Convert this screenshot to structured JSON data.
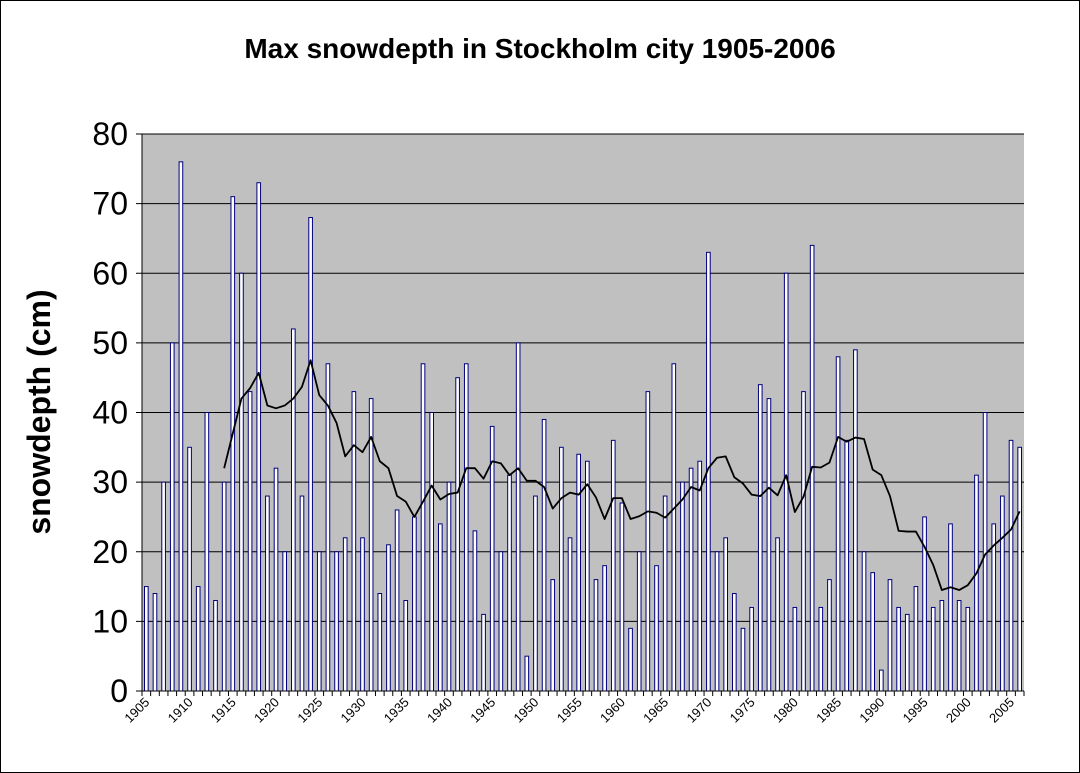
{
  "chart_data": {
    "type": "bar",
    "title": "Max snowdepth in Stockholm city 1905-2006",
    "ylabel": "snowdepth (cm)",
    "xlabel": "",
    "ylim": [
      0,
      80
    ],
    "yticks": [
      "0",
      "10",
      "20",
      "30",
      "40",
      "50",
      "60",
      "70",
      "80"
    ],
    "x_tick_labels": [
      "1905",
      "1910",
      "1915",
      "1920",
      "1925",
      "1930",
      "1935",
      "1940",
      "1945",
      "1950",
      "1955",
      "1960",
      "1965",
      "1970",
      "1975",
      "1980",
      "1985",
      "1990",
      "1995",
      "2000",
      "2005"
    ],
    "grid": true,
    "legend": "none",
    "plot_background": "#c0c0c0",
    "bar_fill": "#ffffff",
    "bar_stroke": "#000080",
    "line_color": "#000000",
    "categories": [
      1905,
      1906,
      1907,
      1908,
      1909,
      1910,
      1911,
      1912,
      1913,
      1914,
      1915,
      1916,
      1917,
      1918,
      1919,
      1920,
      1921,
      1922,
      1923,
      1924,
      1925,
      1926,
      1927,
      1928,
      1929,
      1930,
      1931,
      1932,
      1933,
      1934,
      1935,
      1936,
      1937,
      1938,
      1939,
      1940,
      1941,
      1942,
      1943,
      1944,
      1945,
      1946,
      1947,
      1948,
      1949,
      1950,
      1951,
      1952,
      1953,
      1954,
      1955,
      1956,
      1957,
      1958,
      1959,
      1960,
      1961,
      1962,
      1963,
      1964,
      1965,
      1966,
      1967,
      1968,
      1969,
      1970,
      1971,
      1972,
      1973,
      1974,
      1975,
      1976,
      1977,
      1978,
      1979,
      1980,
      1981,
      1982,
      1983,
      1984,
      1985,
      1986,
      1987,
      1988,
      1989,
      1990,
      1991,
      1992,
      1993,
      1994,
      1995,
      1996,
      1997,
      1998,
      1999,
      2000,
      2001,
      2002,
      2003,
      2004,
      2005,
      2006
    ],
    "series": [
      {
        "kind": "bar",
        "values": [
          15,
          14,
          30,
          50,
          76,
          35,
          15,
          40,
          13,
          30,
          71,
          60,
          43,
          73,
          28,
          32,
          20,
          52,
          28,
          68,
          20,
          47,
          20,
          22,
          43,
          22,
          42,
          14,
          21,
          26,
          13,
          25,
          47,
          40,
          24,
          30,
          45,
          47,
          23,
          11,
          38,
          20,
          31,
          50,
          5,
          28,
          39,
          16,
          35,
          22,
          34,
          33,
          16,
          18,
          36,
          27,
          9,
          20,
          43,
          18,
          28,
          47,
          30,
          32,
          33,
          63,
          20,
          22,
          14,
          9,
          12,
          44,
          42,
          22,
          60,
          12,
          43,
          64,
          12,
          16,
          48,
          36,
          49,
          20,
          17,
          3,
          16,
          12,
          11,
          15,
          25,
          12,
          13,
          24,
          13,
          12,
          31,
          40,
          24,
          28,
          36,
          35
        ]
      },
      {
        "kind": "line",
        "x": [
          1914,
          1915,
          1916,
          1917,
          1918,
          1919,
          1920,
          1921,
          1922,
          1923,
          1924,
          1925,
          1926,
          1927,
          1928,
          1929,
          1930,
          1931,
          1932,
          1933,
          1934,
          1935,
          1936,
          1937,
          1938,
          1939,
          1940,
          1941,
          1942,
          1943,
          1944,
          1945,
          1946,
          1947,
          1948,
          1949,
          1950,
          1951,
          1952,
          1953,
          1954,
          1955,
          1956,
          1957,
          1958,
          1959,
          1960,
          1961,
          1962,
          1963,
          1964,
          1965,
          1966,
          1967,
          1968,
          1969,
          1970,
          1971,
          1972,
          1973,
          1974,
          1975,
          1976,
          1977,
          1978,
          1979,
          1980,
          1981,
          1982,
          1983,
          1984,
          1985,
          1986,
          1987,
          1988,
          1989,
          1990,
          1991,
          1992,
          1993,
          1994,
          1995,
          1996,
          1997,
          1998,
          1999,
          2000,
          2001,
          2002,
          2003,
          2004,
          2005,
          2006
        ],
        "values": [
          32,
          37,
          42,
          43.5,
          45.7,
          41,
          40.6,
          41,
          42,
          43.7,
          47.5,
          42.5,
          41,
          38.5,
          33.7,
          35.3,
          34.3,
          36.5,
          33,
          32,
          28,
          27.2,
          25,
          27.2,
          29.5,
          27.5,
          28.3,
          28.5,
          32,
          32,
          30.5,
          33,
          32.7,
          31,
          32,
          30.2,
          30.2,
          29.3,
          26.2,
          27.7,
          28.5,
          28.2,
          29.7,
          27.8,
          24.7,
          27.7,
          27.7,
          24.7,
          25.1,
          25.8,
          25.6,
          24.9,
          26.2,
          27.5,
          29.3,
          28.8,
          32,
          33.5,
          33.7,
          30.7,
          29.8,
          28.2,
          28,
          29.2,
          28.1,
          31,
          25.7,
          27.9,
          32.2,
          32.1,
          32.8,
          36.5,
          35.8,
          36.4,
          36.2,
          31.8,
          31,
          28,
          23,
          22.9,
          22.9,
          20.7,
          18.1,
          14.5,
          14.9,
          14.5,
          15.2,
          16.9,
          19.6,
          20.9,
          22,
          23.2,
          25.8
        ]
      }
    ]
  }
}
